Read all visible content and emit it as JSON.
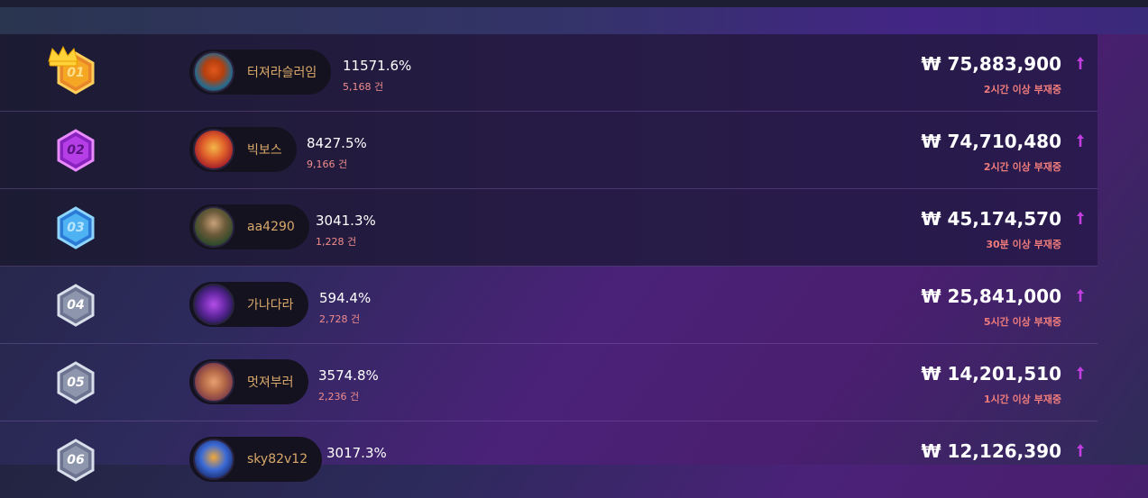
{
  "currency_symbol": "₩",
  "rankings": [
    {
      "rank": "01",
      "name": "터져라슬러임",
      "percent": "11571.6%",
      "count": "5,168 건",
      "amount": "₩ 75,883,900",
      "status": "2시간 이상 부재중",
      "badge": "gold",
      "avatar": "pumpkin-avatar"
    },
    {
      "rank": "02",
      "name": "빅보스",
      "percent": "8427.5%",
      "count": "9,166 건",
      "amount": "₩ 74,710,480",
      "status": "2시간 이상 부재중",
      "badge": "purple",
      "avatar": "dragon-avatar"
    },
    {
      "rank": "03",
      "name": "aa4290",
      "percent": "3041.3%",
      "count": "1,228 건",
      "amount": "₩ 45,174,570",
      "status": "30분 이상 부재중",
      "badge": "blue",
      "avatar": "soldier-avatar"
    },
    {
      "rank": "04",
      "name": "가나다라",
      "percent": "594.4%",
      "count": "2,728 건",
      "amount": "₩ 25,841,000",
      "status": "5시간 이상 부재중",
      "badge": "silver",
      "avatar": "neon-avatar"
    },
    {
      "rank": "05",
      "name": "멋져부러",
      "percent": "3574.8%",
      "count": "2,236 건",
      "amount": "₩ 14,201,510",
      "status": "1시간 이상 부재중",
      "badge": "silver",
      "avatar": "monkey-avatar"
    },
    {
      "rank": "06",
      "name": "sky82v12",
      "percent": "3017.3%",
      "count": "",
      "amount": "₩ 12,126,390",
      "status": "",
      "badge": "silver",
      "avatar": "robot-avatar"
    }
  ],
  "colors": {
    "gold": "#f5a623",
    "purple": "#c13ee0",
    "blue": "#3ea6f0",
    "silver": "#9aa2b8",
    "arrow": "#c13ee0",
    "player_name": "#d8a86a",
    "status": "#f07c7c"
  }
}
